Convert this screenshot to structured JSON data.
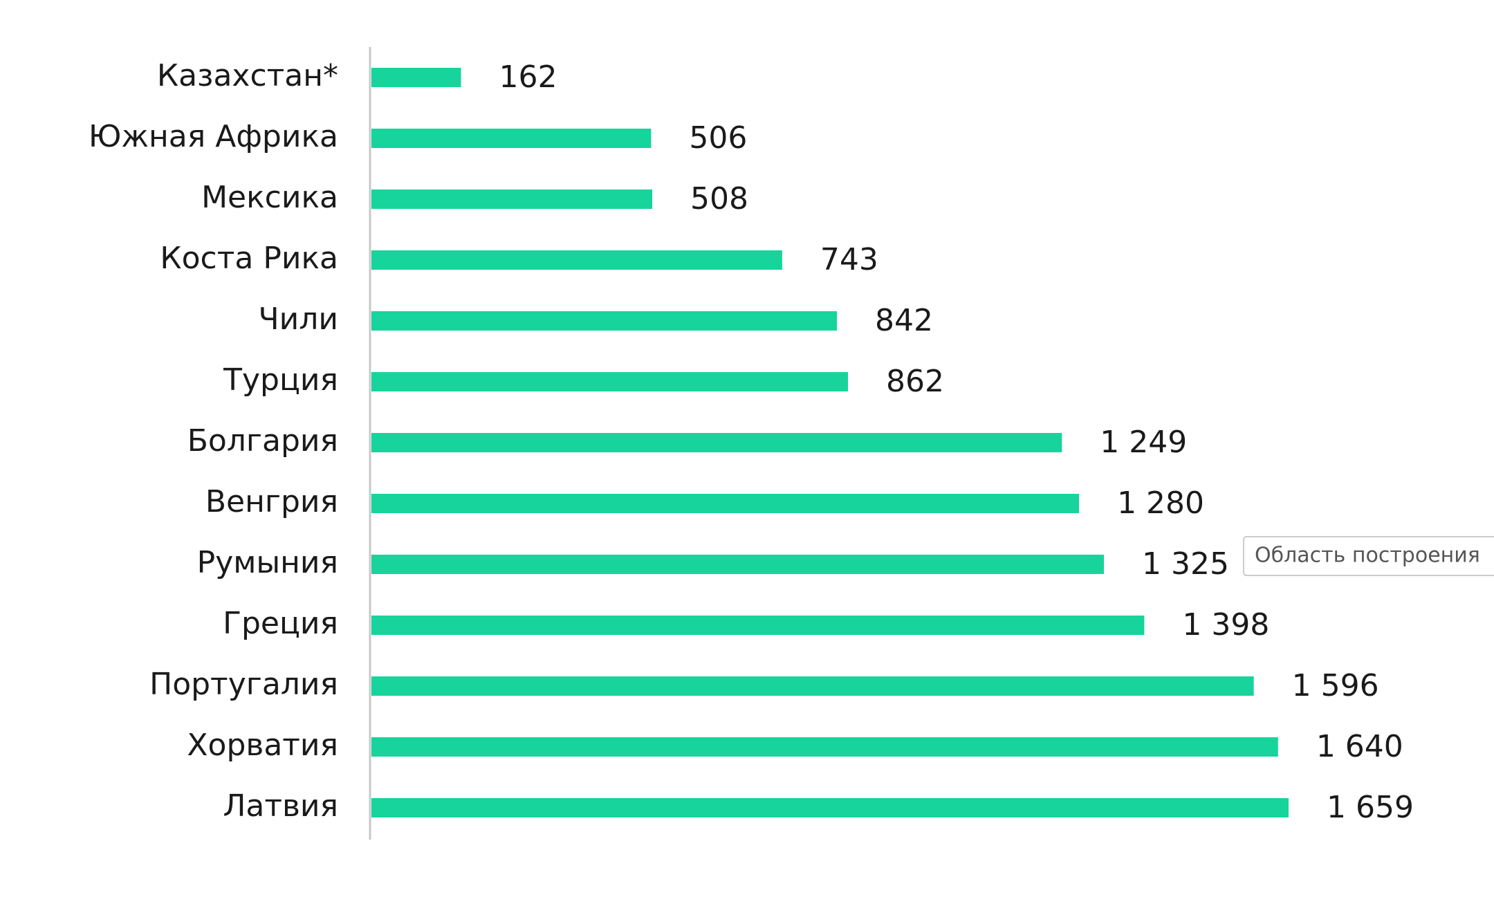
{
  "chart_data": {
    "type": "barh",
    "categories": [
      "Казахстан*",
      "Южная Африка",
      "Мексика",
      "Коста Рика",
      "Чили",
      "Турция",
      "Болгария",
      "Венгрия",
      "Румыния",
      "Греция",
      "Португалия",
      "Хорватия",
      "Латвия"
    ],
    "values": [
      162,
      506,
      508,
      743,
      842,
      862,
      1249,
      1280,
      1325,
      1398,
      1596,
      1640,
      1659
    ],
    "value_labels": [
      "162",
      "506",
      "508",
      "743",
      "842",
      "862",
      "1 249",
      "1 280",
      "1 325",
      "1 398",
      "1 596",
      "1 640",
      "1 659"
    ],
    "color": "#17d49c"
  },
  "tooltip": "Область построения"
}
